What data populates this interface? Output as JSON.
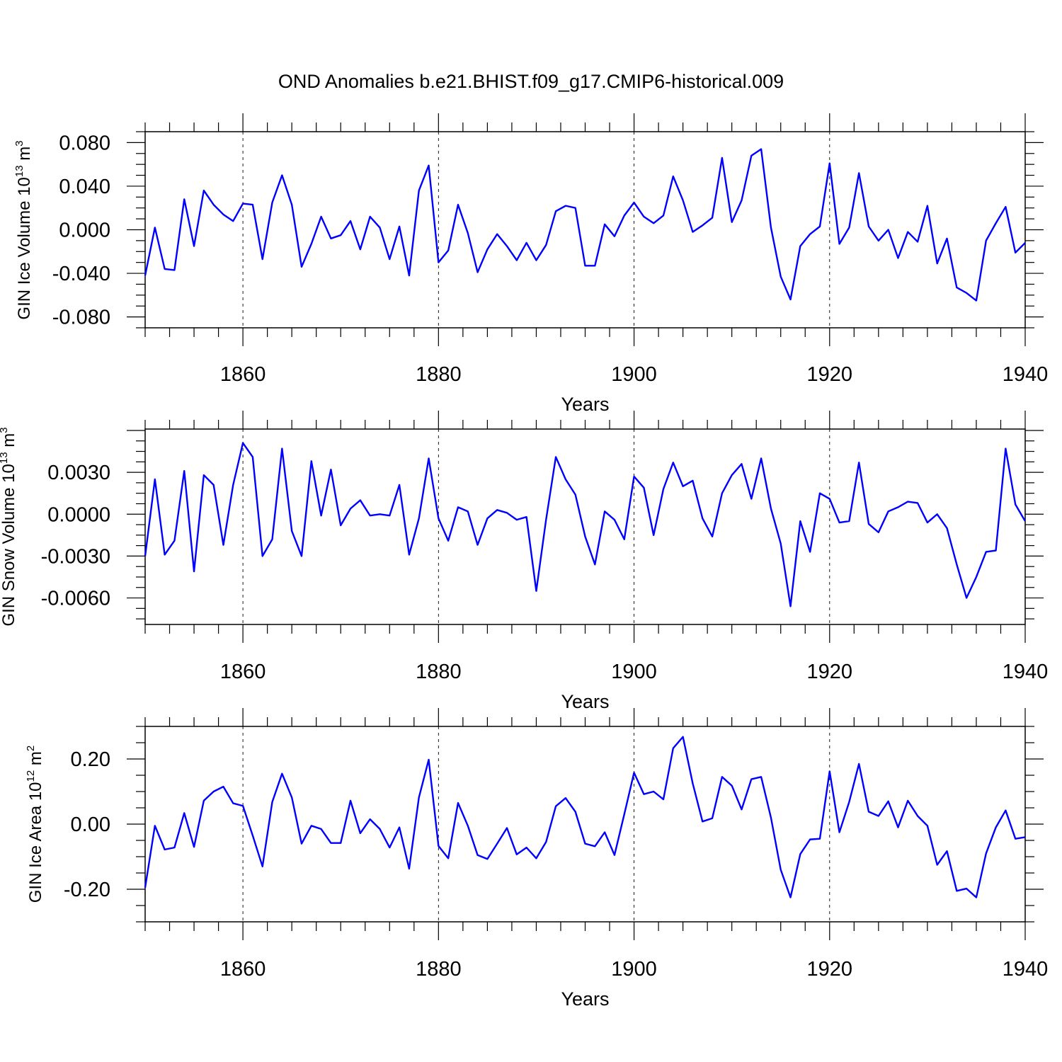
{
  "title": "OND Anomalies b.e21.BHIST.f09_g17.CMIP6-historical.009",
  "colors": {
    "series": "#0000ff",
    "axis": "#000000",
    "grid": "#000000"
  },
  "chart_data": [
    {
      "type": "line",
      "name": "ice-volume",
      "ylabel": {
        "main": "GIN Ice Volume 10",
        "sup": "13",
        "unit": " m",
        "unit_sup": "3"
      },
      "xlabel": "Years",
      "xlim": [
        1850,
        1940
      ],
      "ylim": [
        -0.09,
        0.09
      ],
      "xticks": [
        1860,
        1880,
        1900,
        1920,
        1940
      ],
      "xtick_labels": [
        "1860",
        "1880",
        "1900",
        "1920",
        "1940"
      ],
      "yticks": [
        -0.08,
        -0.04,
        0.0,
        0.04,
        0.08
      ],
      "ytick_labels": [
        "-0.080",
        "-0.040",
        "0.000",
        "0.040",
        "0.080"
      ],
      "grid": "dashed vertical at major x ticks",
      "x_start": 1850,
      "values": [
        -0.042,
        0.002,
        -0.036,
        -0.037,
        0.028,
        -0.015,
        0.036,
        0.023,
        0.014,
        0.008,
        0.024,
        0.023,
        -0.027,
        0.025,
        0.05,
        0.023,
        -0.034,
        -0.013,
        0.012,
        -0.008,
        -0.005,
        0.008,
        -0.018,
        0.012,
        0.002,
        -0.027,
        0.003,
        -0.042,
        0.036,
        0.059,
        -0.03,
        -0.019,
        0.023,
        -0.003,
        -0.039,
        -0.018,
        -0.004,
        -0.015,
        -0.028,
        -0.012,
        -0.028,
        -0.014,
        0.017,
        0.022,
        0.02,
        -0.033,
        -0.033,
        0.005,
        -0.006,
        0.013,
        0.025,
        0.012,
        0.006,
        0.013,
        0.049,
        0.027,
        -0.002,
        0.004,
        0.011,
        0.066,
        0.007,
        0.027,
        0.068,
        0.074,
        0.002,
        -0.043,
        -0.064,
        -0.015,
        -0.004,
        0.003,
        0.061,
        -0.013,
        0.002,
        0.052,
        0.003,
        -0.01,
        0.0,
        -0.026,
        -0.002,
        -0.011,
        0.022,
        -0.031,
        -0.008,
        -0.053,
        -0.058,
        -0.065,
        -0.01,
        0.006,
        0.021,
        -0.021,
        -0.012
      ]
    },
    {
      "type": "line",
      "name": "snow-volume",
      "ylabel": {
        "main": "GIN Snow Volume 10",
        "sup": "13",
        "unit": " m",
        "unit_sup": "3"
      },
      "xlabel": "Years",
      "xlim": [
        1850,
        1940
      ],
      "ylim": [
        -0.0079,
        0.0061
      ],
      "xticks": [
        1860,
        1880,
        1900,
        1920,
        1940
      ],
      "xtick_labels": [
        "1860",
        "1880",
        "1900",
        "1920",
        "1940"
      ],
      "yticks": [
        -0.006,
        -0.003,
        0.0,
        0.003
      ],
      "ytick_labels": [
        "-0.0060",
        "-0.0030",
        "0.0000",
        "0.0030"
      ],
      "grid": "dashed vertical at major x ticks",
      "x_start": 1850,
      "values": [
        -0.003,
        0.0025,
        -0.0029,
        -0.0019,
        0.0031,
        -0.0041,
        0.0028,
        0.0021,
        -0.0022,
        0.0021,
        0.0051,
        0.0041,
        -0.003,
        -0.0018,
        0.0047,
        -0.0012,
        -0.003,
        0.0038,
        -0.0001,
        0.0032,
        -0.0008,
        0.0004,
        0.001,
        -0.0001,
        0.0,
        -0.0001,
        0.0021,
        -0.0029,
        -0.0003,
        0.004,
        -0.0003,
        -0.0019,
        0.0005,
        0.0002,
        -0.0022,
        -0.0003,
        0.0003,
        0.0001,
        -0.0004,
        -0.0002,
        -0.0055,
        -0.0004,
        0.0041,
        0.0025,
        0.0014,
        -0.0016,
        -0.0036,
        0.0002,
        -0.0004,
        -0.0018,
        0.0027,
        0.0019,
        -0.0015,
        0.0018,
        0.0037,
        0.002,
        0.0024,
        -0.0003,
        -0.0016,
        0.0015,
        0.0028,
        0.0036,
        0.0011,
        0.004,
        0.0004,
        -0.0021,
        -0.0066,
        -0.0005,
        -0.0027,
        0.0015,
        0.0011,
        -0.0006,
        -0.0005,
        0.0037,
        -0.0007,
        -0.0013,
        0.0002,
        0.0005,
        0.0009,
        0.0008,
        -0.0006,
        0.0,
        -0.001,
        -0.0036,
        -0.006,
        -0.0045,
        -0.0027,
        -0.0026,
        0.0047,
        0.0007,
        -0.0005
      ]
    },
    {
      "type": "line",
      "name": "ice-area",
      "ylabel": {
        "main": "GIN Ice Area 10",
        "sup": "12",
        "unit": " m",
        "unit_sup": "2"
      },
      "xlabel": "Years",
      "xlim": [
        1850,
        1940
      ],
      "ylim": [
        -0.3,
        0.3
      ],
      "xticks": [
        1860,
        1880,
        1900,
        1920,
        1940
      ],
      "xtick_labels": [
        "1860",
        "1880",
        "1900",
        "1920",
        "1940"
      ],
      "yticks": [
        -0.2,
        0.0,
        0.2
      ],
      "ytick_labels": [
        "-0.20",
        "0.00",
        "0.20"
      ],
      "grid": "dashed vertical at major x ticks",
      "x_start": 1850,
      "values": [
        -0.195,
        -0.005,
        -0.078,
        -0.072,
        0.034,
        -0.07,
        0.072,
        0.1,
        0.115,
        0.064,
        0.056,
        -0.035,
        -0.13,
        0.068,
        0.155,
        0.082,
        -0.06,
        -0.005,
        -0.015,
        -0.058,
        -0.058,
        0.072,
        -0.028,
        0.015,
        -0.015,
        -0.072,
        -0.01,
        -0.137,
        0.082,
        0.198,
        -0.067,
        -0.105,
        0.065,
        -0.005,
        -0.095,
        -0.107,
        -0.06,
        -0.012,
        -0.093,
        -0.072,
        -0.105,
        -0.055,
        0.055,
        0.08,
        0.038,
        -0.06,
        -0.068,
        -0.025,
        -0.095,
        0.03,
        0.158,
        0.092,
        0.1,
        0.076,
        0.233,
        0.268,
        0.125,
        0.008,
        0.018,
        0.145,
        0.118,
        0.045,
        0.138,
        0.145,
        0.02,
        -0.14,
        -0.225,
        -0.092,
        -0.047,
        -0.045,
        0.162,
        -0.025,
        0.068,
        0.185,
        0.038,
        0.025,
        0.07,
        -0.01,
        0.072,
        0.025,
        -0.005,
        -0.125,
        -0.083,
        -0.205,
        -0.198,
        -0.225,
        -0.09,
        -0.01,
        0.042,
        -0.045,
        -0.04
      ]
    }
  ]
}
